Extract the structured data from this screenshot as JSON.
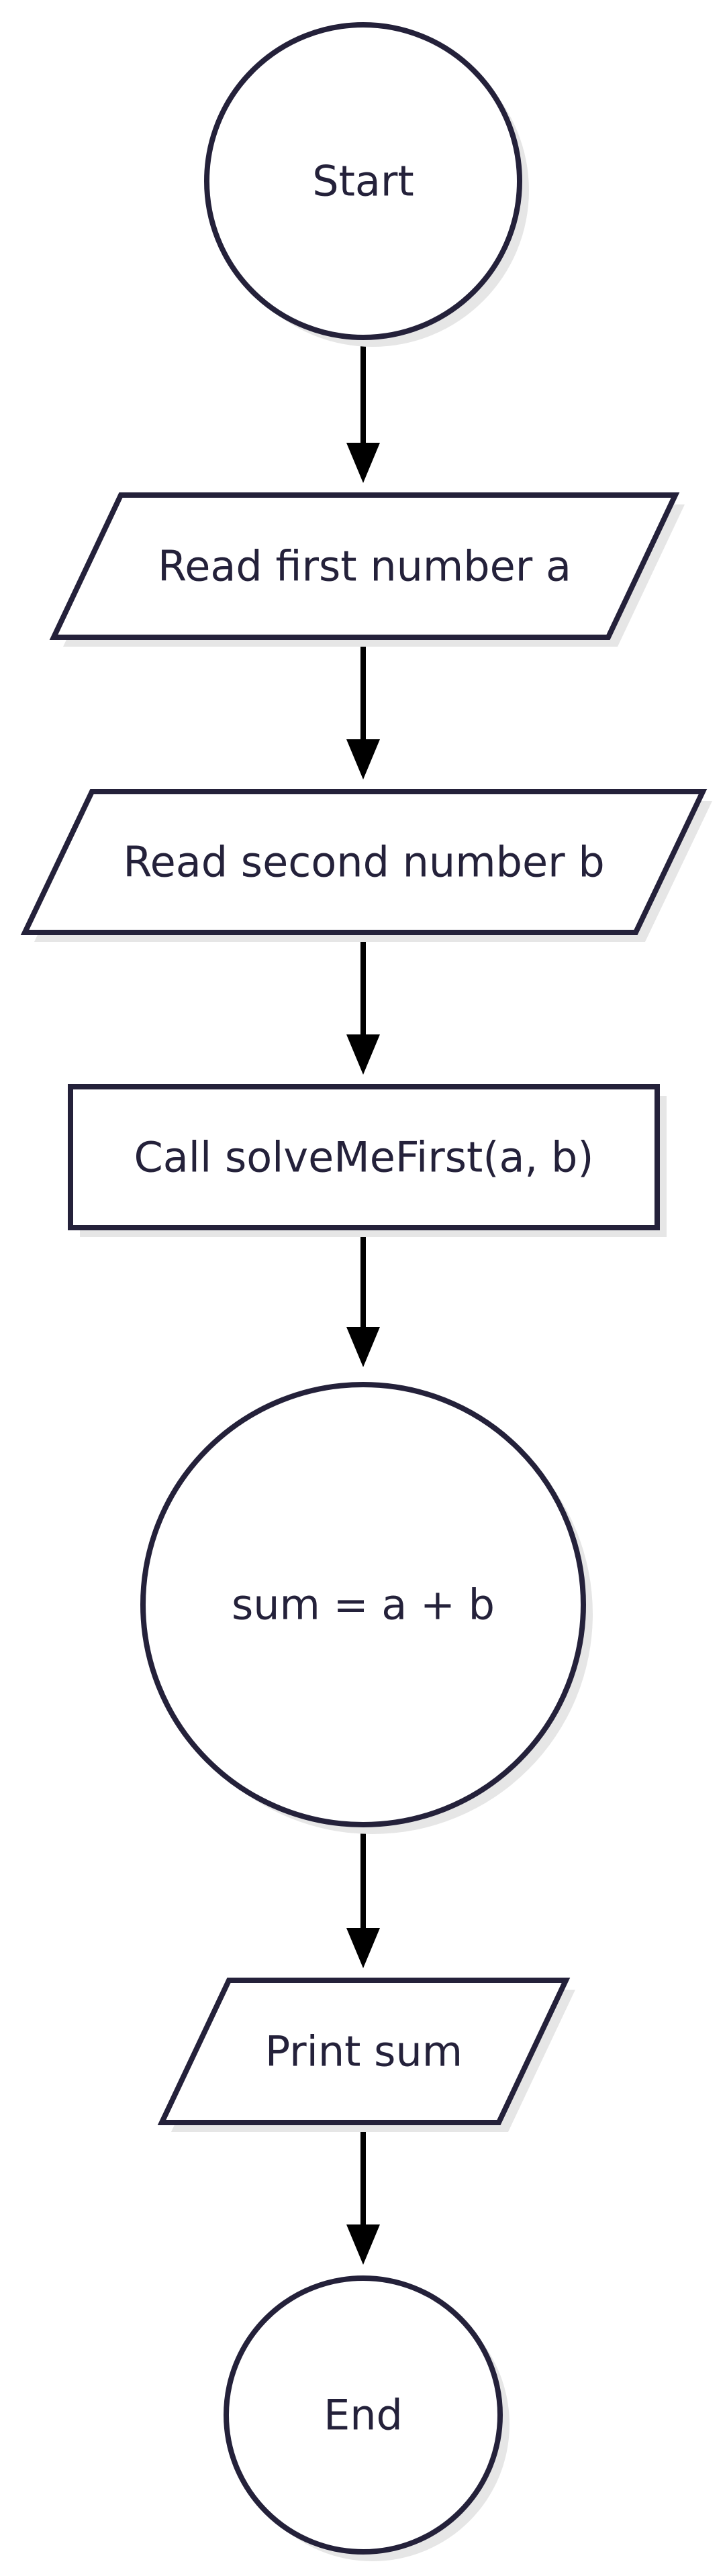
{
  "diagram": {
    "type": "flowchart",
    "colors": {
      "background": "#ffffff",
      "node_stroke": "#24213a",
      "node_fill": "#ffffff",
      "text": "#24213a",
      "edge": "#000000",
      "shadow": "#e6e6e6"
    },
    "nodes": [
      {
        "id": "start",
        "shape": "circle",
        "label": "Start"
      },
      {
        "id": "read-a",
        "shape": "parallelogram",
        "label": "Read first number a"
      },
      {
        "id": "read-b",
        "shape": "parallelogram",
        "label": "Read second number b"
      },
      {
        "id": "call-fn",
        "shape": "rectangle",
        "label": "Call solveMeFirst(a, b)"
      },
      {
        "id": "sum",
        "shape": "circle",
        "label": "sum = a + b"
      },
      {
        "id": "print",
        "shape": "parallelogram",
        "label": "Print sum"
      },
      {
        "id": "end",
        "shape": "circle",
        "label": "End"
      }
    ],
    "edges": [
      {
        "from": "start",
        "to": "read-a"
      },
      {
        "from": "read-a",
        "to": "read-b"
      },
      {
        "from": "read-b",
        "to": "call-fn"
      },
      {
        "from": "call-fn",
        "to": "sum"
      },
      {
        "from": "sum",
        "to": "print"
      },
      {
        "from": "print",
        "to": "end"
      }
    ]
  }
}
